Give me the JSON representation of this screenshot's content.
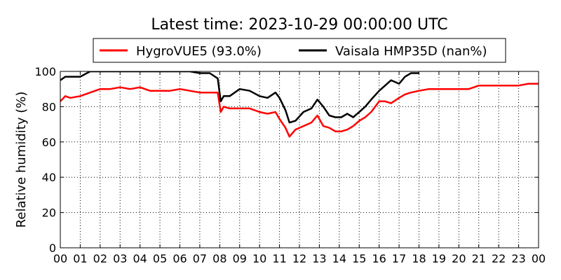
{
  "chart_data": {
    "type": "line",
    "title": "Latest time: 2023-10-29 00:00:00 UTC",
    "xlabel": "",
    "ylabel": "Relative humidity (%)",
    "xlim": [
      0,
      24
    ],
    "ylim": [
      0,
      100
    ],
    "grid": true,
    "legend_position": "top-center",
    "x_ticks": [
      "00",
      "01",
      "02",
      "03",
      "04",
      "05",
      "06",
      "07",
      "08",
      "09",
      "10",
      "11",
      "12",
      "13",
      "14",
      "15",
      "16",
      "17",
      "18",
      "19",
      "20",
      "21",
      "22",
      "23",
      "00"
    ],
    "y_ticks": [
      0,
      20,
      40,
      60,
      80,
      100
    ],
    "x_hours": [
      0,
      0.25,
      0.5,
      1,
      1.5,
      2,
      2.5,
      3,
      3.5,
      4,
      4.5,
      5,
      5.5,
      6,
      6.5,
      7,
      7.5,
      7.9,
      8.05,
      8.2,
      8.5,
      9,
      9.5,
      10,
      10.4,
      10.8,
      11,
      11.3,
      11.5,
      11.8,
      12.2,
      12.6,
      12.9,
      13.2,
      13.5,
      13.8,
      14.1,
      14.4,
      14.7,
      15,
      15.3,
      15.6,
      16,
      16.3,
      16.6,
      17,
      17.3,
      17.6,
      18,
      18.5,
      19,
      19.5,
      20,
      20.5,
      21,
      21.5,
      22,
      22.5,
      23,
      23.5,
      24
    ],
    "series": [
      {
        "name": "HygroVUE5 (93.0%)",
        "color": "#ff0000",
        "values": [
          83,
          86,
          85,
          86,
          88,
          90,
          90,
          91,
          90,
          91,
          89,
          89,
          89,
          90,
          89,
          88,
          88,
          88,
          77,
          80,
          79,
          79,
          79,
          77,
          76,
          77,
          73,
          68,
          63,
          67,
          69,
          71,
          75,
          69,
          68,
          66,
          66,
          67,
          69,
          72,
          74,
          77,
          83,
          83,
          82,
          85,
          87,
          88,
          89,
          90,
          90,
          90,
          90,
          90,
          92,
          92,
          92,
          92,
          92,
          93,
          93
        ]
      },
      {
        "name": "Vaisala HMP35D (nan%)",
        "color": "#000000",
        "values": [
          95,
          97,
          97,
          97,
          100,
          100,
          100,
          100,
          100,
          100,
          100,
          100,
          100,
          100,
          100,
          99,
          99,
          96,
          83,
          86,
          86,
          90,
          89,
          86,
          85,
          88,
          85,
          78,
          71,
          72,
          77,
          79,
          84,
          80,
          75,
          74,
          74,
          76,
          74,
          77,
          80,
          84,
          89,
          92,
          95,
          93,
          97,
          99,
          99,
          null,
          null,
          null,
          null,
          null,
          null,
          null,
          null,
          null,
          null,
          null,
          null
        ]
      }
    ]
  }
}
